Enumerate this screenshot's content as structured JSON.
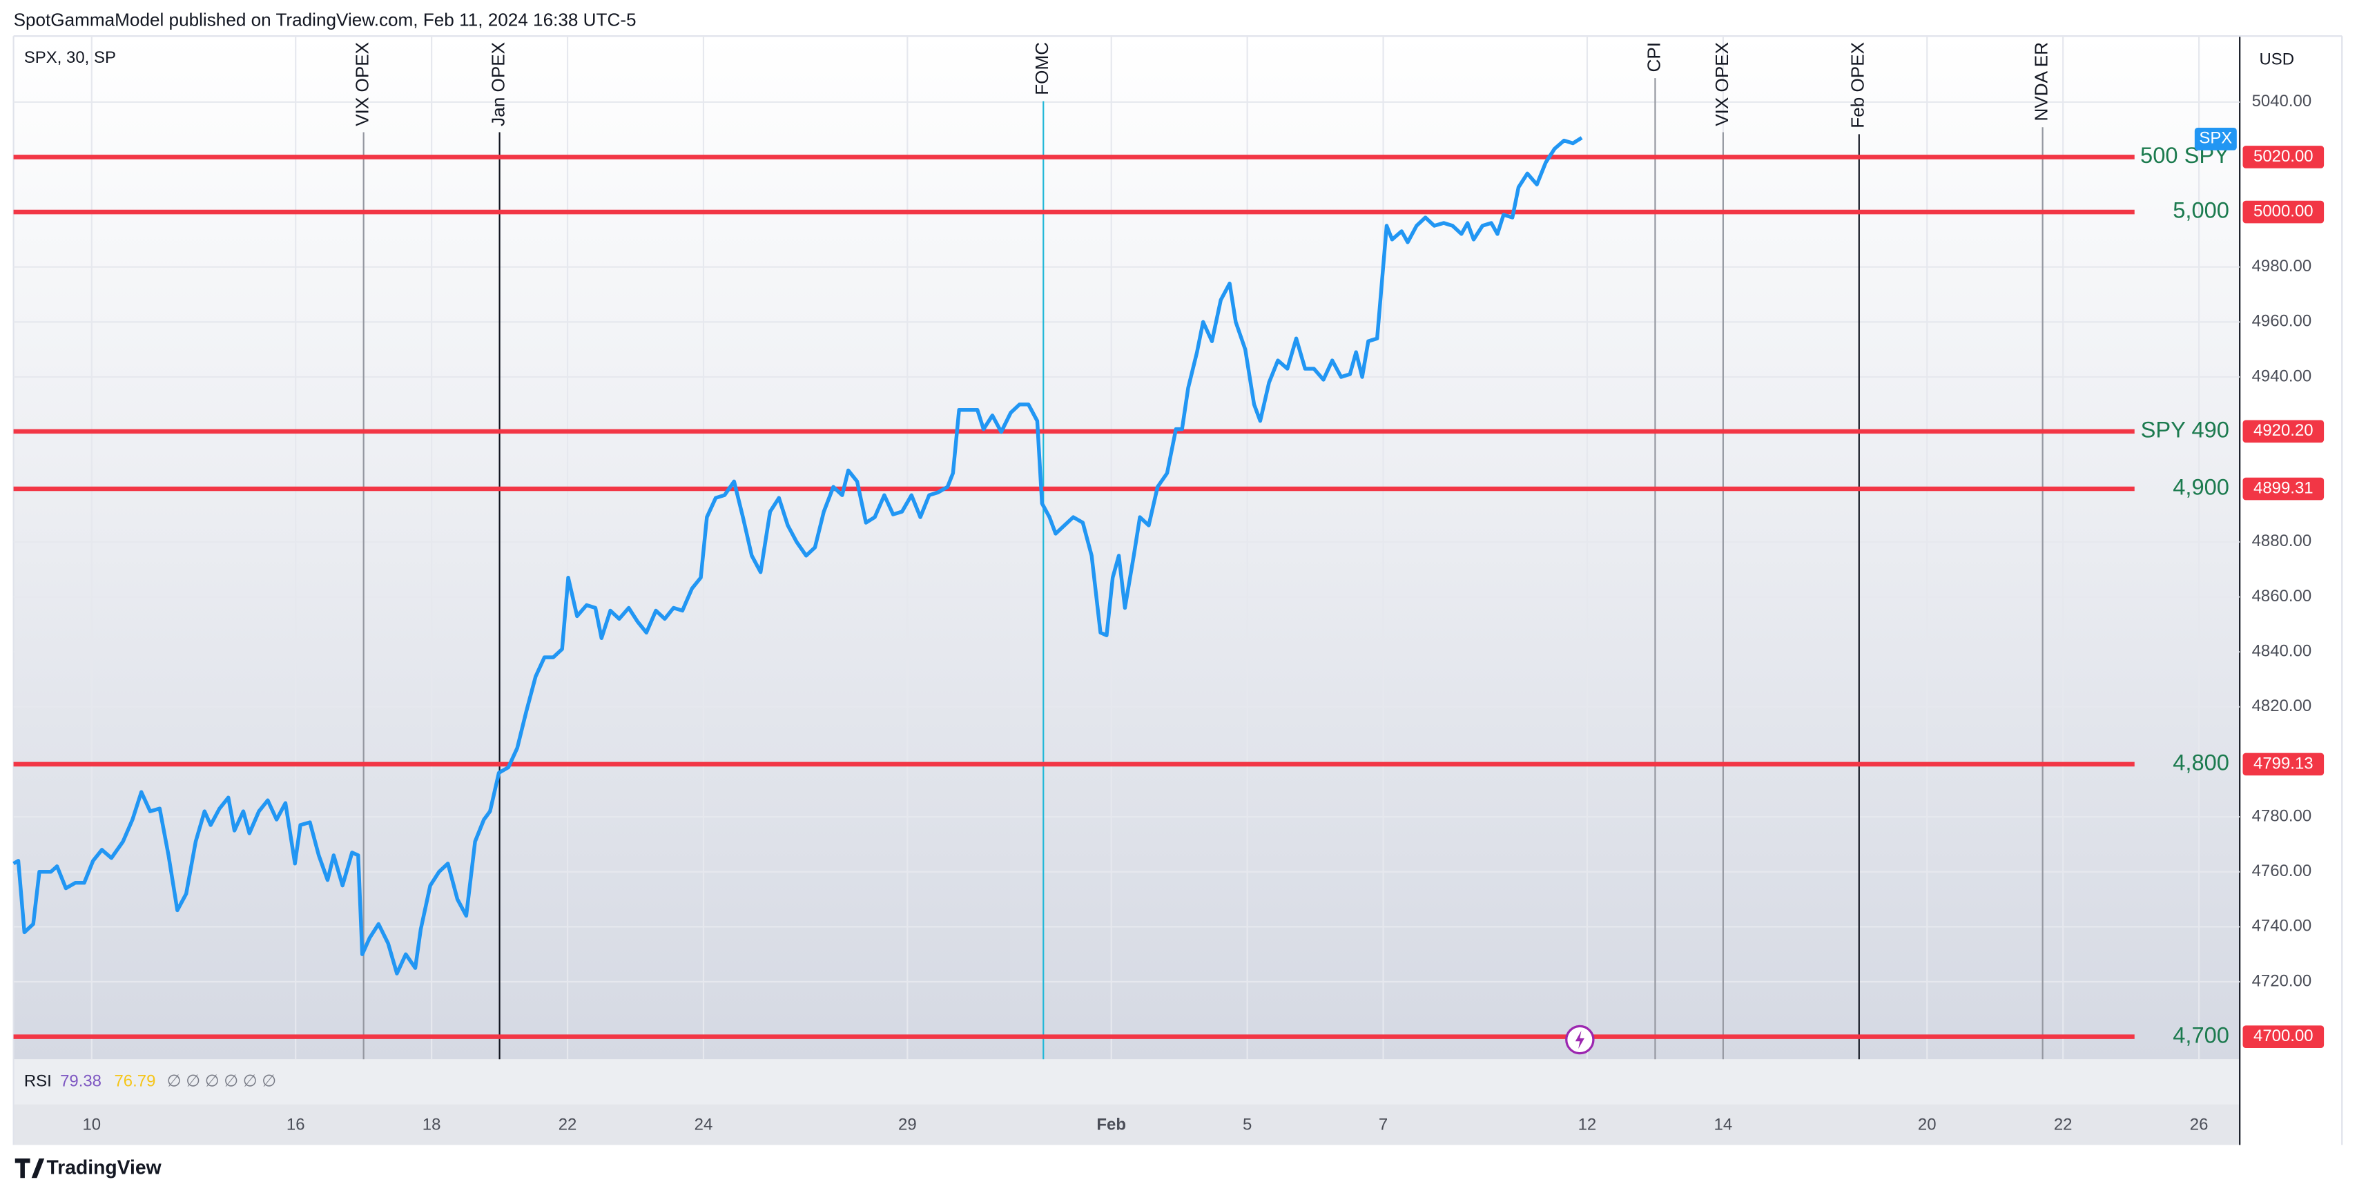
{
  "chart_data": {
    "type": "line",
    "published": "SpotGammaModel published on TradingView.com, Feb 11, 2024 16:38 UTC-5",
    "symbol": "SPX, 30, SP",
    "currency": "USD",
    "brand": "TradingView",
    "x": [
      -1.15,
      -1.08,
      -0.99,
      -0.86,
      -0.77,
      -0.6,
      -0.51,
      -0.38,
      -0.24,
      -0.11,
      0.02,
      0.15,
      0.29,
      0.46,
      0.6,
      0.73,
      0.86,
      1.0,
      1.13,
      1.26,
      1.39,
      1.53,
      1.66,
      1.75,
      1.88,
      2.01,
      2.1,
      2.23,
      2.32,
      2.46,
      2.59,
      2.72,
      2.85,
      2.99,
      3.07,
      3.21,
      3.34,
      3.47,
      3.56,
      3.69,
      3.83,
      3.92,
      3.98,
      4.09,
      4.22,
      4.36,
      4.49,
      4.62,
      4.76,
      4.84,
      4.98,
      5.11,
      5.24,
      5.38,
      5.51,
      5.64,
      5.77,
      5.86,
      5.99,
      6.13,
      6.26,
      6.39,
      6.53,
      6.66,
      6.79,
      6.92,
      7.01,
      7.14,
      7.28,
      7.41,
      7.5,
      7.63,
      7.76,
      7.9,
      8.03,
      8.16,
      8.3,
      8.43,
      8.56,
      8.69,
      8.83,
      8.96,
      9.05,
      9.18,
      9.31,
      9.45,
      9.58,
      9.71,
      9.84,
      9.98,
      10.11,
      10.24,
      10.37,
      10.51,
      10.64,
      10.77,
      10.91,
      11.04,
      11.13,
      11.26,
      11.39,
      11.52,
      11.66,
      11.79,
      11.92,
      12.06,
      12.19,
      12.32,
      12.45,
      12.59,
      12.67,
      12.76,
      12.9,
      13.03,
      13.12,
      13.25,
      13.38,
      13.52,
      13.65,
      13.78,
      13.91,
      13.98,
      14.09,
      14.18,
      14.31,
      14.44,
      14.58,
      14.71,
      14.84,
      14.93,
      15.02,
      15.11,
      15.2,
      15.33,
      15.42,
      15.55,
      15.68,
      15.82,
      15.95,
      16.04,
      16.13,
      16.26,
      16.35,
      16.48,
      16.61,
      16.74,
      16.83,
      16.97,
      17.1,
      17.19,
      17.32,
      17.45,
      17.59,
      17.72,
      17.85,
      17.98,
      18.12,
      18.25,
      18.38,
      18.51,
      18.6,
      18.69,
      18.78,
      18.91,
      19.05,
      19.13,
      19.27,
      19.36,
      19.49,
      19.62,
      19.75,
      19.89,
      20.02,
      20.15,
      20.24,
      20.33,
      20.46,
      20.59,
      20.68,
      20.77,
      20.9,
      20.99,
      21.12,
      21.26,
      21.39,
      21.52,
      21.66,
      21.79,
      21.92
    ],
    "series": [
      {
        "name": "SPX",
        "color": "#2196f3",
        "values": [
          4763,
          4764,
          4738,
          4741,
          4760,
          4760,
          4762,
          4754,
          4756,
          4756,
          4764,
          4768,
          4765,
          4771,
          4779,
          4789,
          4782,
          4783,
          4766,
          4746,
          4752,
          4771,
          4782,
          4777,
          4783,
          4787,
          4775,
          4782,
          4774,
          4782,
          4786,
          4779,
          4785,
          4763,
          4777,
          4778,
          4766,
          4757,
          4766,
          4755,
          4767,
          4766,
          4730,
          4736,
          4741,
          4734,
          4723,
          4730,
          4725,
          4739,
          4755,
          4760,
          4763,
          4750,
          4744,
          4771,
          4779,
          4782,
          4796,
          4798,
          4805,
          4818,
          4831,
          4838,
          4838,
          4841,
          4867,
          4853,
          4857,
          4856,
          4845,
          4855,
          4852,
          4856,
          4851,
          4847,
          4855,
          4852,
          4856,
          4855,
          4863,
          4867,
          4889,
          4896,
          4897,
          4902,
          4889,
          4875,
          4869,
          4891,
          4896,
          4886,
          4880,
          4875,
          4878,
          4891,
          4900,
          4897,
          4906,
          4902,
          4887,
          4889,
          4897,
          4890,
          4891,
          4897,
          4889,
          4897,
          4898,
          4900,
          4905,
          4928,
          4928,
          4928,
          4921,
          4926,
          4920,
          4927,
          4930,
          4930,
          4924,
          4894,
          4889,
          4883,
          4886,
          4889,
          4887,
          4875,
          4847,
          4846,
          4867,
          4875,
          4856,
          4875,
          4889,
          4886,
          4900,
          4905,
          4921,
          4921,
          4936,
          4949,
          4960,
          4953,
          4968,
          4974,
          4960,
          4950,
          4930,
          4924,
          4938,
          4946,
          4943,
          4954,
          4943,
          4943,
          4939,
          4946,
          4940,
          4941,
          4949,
          4940,
          4953,
          4954,
          4995,
          4990,
          4993,
          4989,
          4995,
          4998,
          4995,
          4996,
          4995,
          4992,
          4996,
          4990,
          4995,
          4996,
          4992,
          4999,
          4998,
          5009,
          5014,
          5010,
          5018,
          5023,
          5026,
          5025,
          5027
        ]
      }
    ],
    "xlim": [
      -1.15,
      31.6
    ],
    "xticks": [
      {
        "value": 0,
        "label": "10"
      },
      {
        "value": 3,
        "label": "16"
      },
      {
        "value": 5,
        "label": "18"
      },
      {
        "value": 7,
        "label": "22"
      },
      {
        "value": 9,
        "label": "24"
      },
      {
        "value": 12,
        "label": "29"
      },
      {
        "value": 15,
        "label": "Feb"
      },
      {
        "value": 17,
        "label": "5"
      },
      {
        "value": 19,
        "label": "7"
      },
      {
        "value": 22,
        "label": "12"
      },
      {
        "value": 24,
        "label": "14"
      },
      {
        "value": 27,
        "label": "20"
      },
      {
        "value": 29,
        "label": "22"
      },
      {
        "value": 31,
        "label": "26"
      }
    ],
    "ylim": [
      4691.8,
      5064
    ],
    "yticks": [
      {
        "value": 4720,
        "label": "4720.00"
      },
      {
        "value": 4740,
        "label": "4740.00"
      },
      {
        "value": 4760,
        "label": "4760.00"
      },
      {
        "value": 4780,
        "label": "4780.00"
      },
      {
        "value": 4820,
        "label": "4820.00"
      },
      {
        "value": 4840,
        "label": "4840.00"
      },
      {
        "value": 4860,
        "label": "4860.00"
      },
      {
        "value": 4880,
        "label": "4880.00"
      },
      {
        "value": 4940,
        "label": "4940.00"
      },
      {
        "value": 4960,
        "label": "4960.00"
      },
      {
        "value": 4980,
        "label": "4980.00"
      },
      {
        "value": 5040,
        "label": "5040.00"
      }
    ],
    "grid": true,
    "levels": {
      "color": "#f23645",
      "label_color": "#1b7a4e",
      "values": [
        5020,
        5000,
        4920.2,
        4899.31,
        4799.13,
        4700
      ],
      "value_labels": [
        "5020.00",
        "5000.00",
        "4920.20",
        "4899.31",
        "4799.13",
        "4700.00"
      ],
      "labels": [
        "500 SPY",
        "5,000",
        "SPY 490",
        "4,900",
        "4,800",
        "4,700"
      ]
    },
    "events": {
      "x": [
        4,
        6,
        14,
        23,
        24,
        26,
        28.7
      ],
      "labels": [
        "VIX OPEX",
        "Jan OPEX",
        "FOMC",
        "CPI",
        "VIX OPEX",
        "Feb OPEX",
        "NVDA ER"
      ],
      "colors": [
        "#9598a1",
        "#131722",
        "#22b8d8",
        "#9598a1",
        "#9598a1",
        "#131722",
        "#9598a1"
      ]
    },
    "rsi": {
      "label": "RSI",
      "values": [
        79.38,
        76.79
      ],
      "colors": [
        "#7e57c2",
        "#f5c518"
      ],
      "placeholders": "∅ ∅ ∅ ∅ ∅ ∅"
    }
  }
}
